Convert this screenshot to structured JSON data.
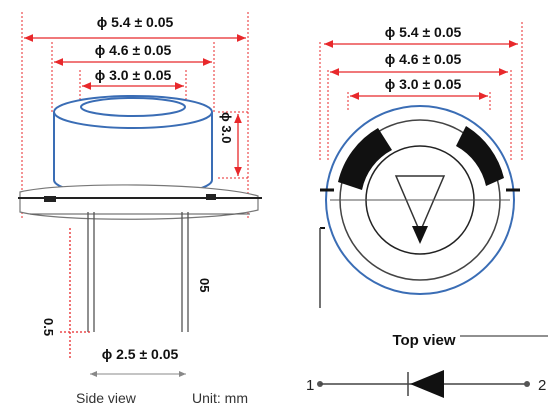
{
  "side_view": {
    "dim_outer": "ϕ 5.4 ± 0.05",
    "dim_mid": "ϕ 4.6 ± 0.05",
    "dim_inner": "ϕ 3.0 ± 0.05",
    "dim_height": "ϕ 3.0",
    "dim_pin_spacing": "ϕ 2.5 ± 0.05",
    "dim_pin_length": "0.5",
    "dim_lead": "05",
    "caption": "Side view",
    "unit": "Unit: mm"
  },
  "top_view": {
    "dim_outer": "ϕ 5.4 ± 0.05",
    "dim_mid": "ϕ 4.6 ± 0.05",
    "dim_inner": "ϕ 3.0 ± 0.05",
    "caption": "Top view"
  },
  "symbol": {
    "pin1": "1",
    "pin2": "2"
  },
  "colors": {
    "dimension": "#e8282b",
    "outline": "#3a6db5",
    "ink": "#111111"
  }
}
